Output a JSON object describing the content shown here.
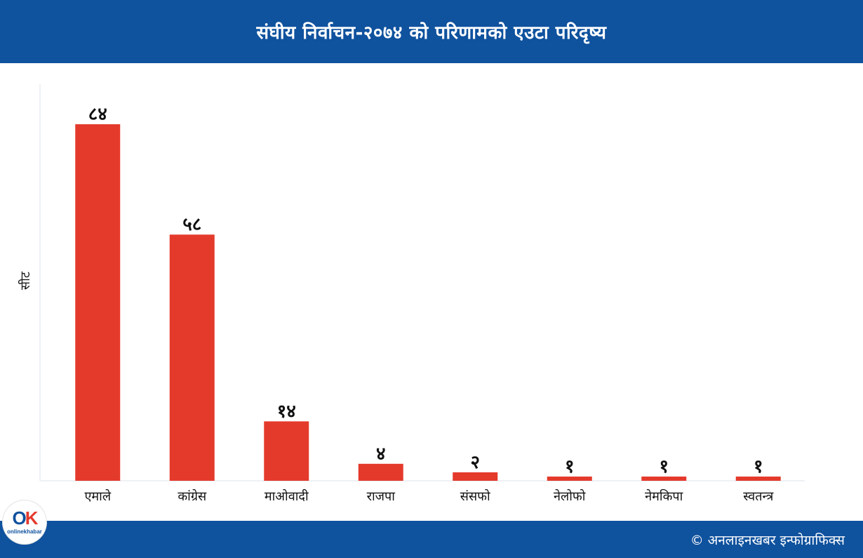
{
  "header": {
    "title": "संघीय निर्वाचन-२०७४ को परिणामको एउटा परिदृष्य"
  },
  "footer": {
    "credit": "© अनलाइनखबर इन्फोग्राफिक्स"
  },
  "logo": {
    "mark_o": "O",
    "mark_k": "K",
    "sub": "onlinekhabar"
  },
  "colors": {
    "header_bg": "#0f529e",
    "bar": "#e43a2c",
    "axis": "#dde3ea"
  },
  "chart_data": {
    "type": "bar",
    "title": "संघीय निर्वाचन-२०७४ को परिणामको एउटा परिदृष्य",
    "ylabel": "सीट",
    "xlabel": "",
    "categories": [
      "एमाले",
      "कांग्रेस",
      "माओवादी",
      "राजपा",
      "संसफो",
      "नेलोफो",
      "नेमकिपा",
      "स्वतन्त्र"
    ],
    "values": [
      84,
      58,
      14,
      4,
      2,
      1,
      1,
      1
    ],
    "data_labels": [
      "८४",
      "५८",
      "१४",
      "४",
      "२",
      "१",
      "१",
      "१"
    ],
    "ylim": [
      0,
      84
    ],
    "grid": false,
    "legend": "none"
  }
}
